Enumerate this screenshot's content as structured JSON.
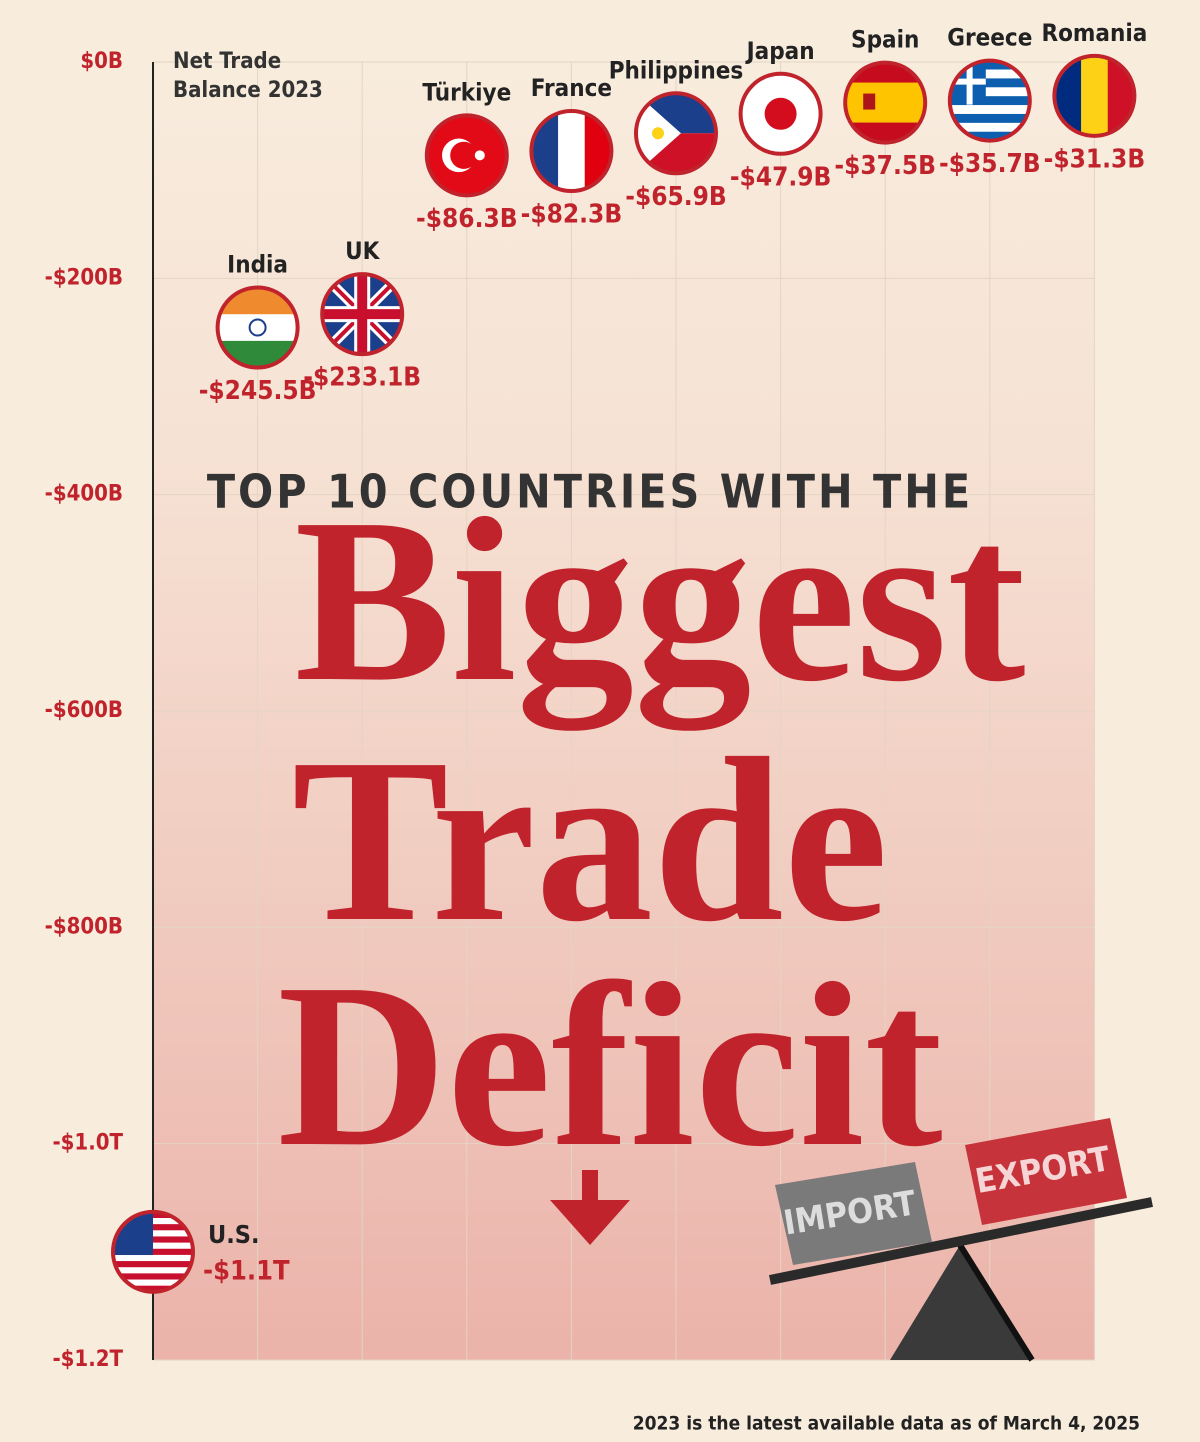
{
  "chart_data": {
    "type": "dot",
    "axis_title": "Net Trade Balance 2023",
    "title_lines": [
      "TOP 10 COUNTRIES WITH THE",
      "Biggest",
      "Trade",
      "Deficit"
    ],
    "categories": [
      "U.S.",
      "India",
      "UK",
      "Türkiye",
      "France",
      "Philippines",
      "Japan",
      "Spain",
      "Greece",
      "Romania"
    ],
    "values": [
      -1100,
      -245.5,
      -233.1,
      -86.3,
      -82.3,
      -65.9,
      -47.9,
      -37.5,
      -35.7,
      -31.3
    ],
    "value_labels": [
      "-$1.1T",
      "-$245.5B",
      "-$233.1B",
      "-$86.3B",
      "-$82.3B",
      "-$65.9B",
      "-$47.9B",
      "-$37.5B",
      "-$35.7B",
      "-$31.3B"
    ],
    "color": "#c0232c",
    "ylim": [
      -1200,
      0
    ],
    "yticks": [
      {
        "value": 0,
        "label": "$0B"
      },
      {
        "value": -200,
        "label": "-$200B"
      },
      {
        "value": -400,
        "label": "-$400B"
      },
      {
        "value": -600,
        "label": "-$600B"
      },
      {
        "value": -800,
        "label": "-$800B"
      },
      {
        "value": -1000,
        "label": "-$1.0T"
      },
      {
        "value": -1200,
        "label": "-$1.2T"
      }
    ],
    "grid": true,
    "note": "2023 is the latest available data as of March 4, 2025",
    "illustration_labels": [
      "IMPORT",
      "EXPORT"
    ]
  }
}
